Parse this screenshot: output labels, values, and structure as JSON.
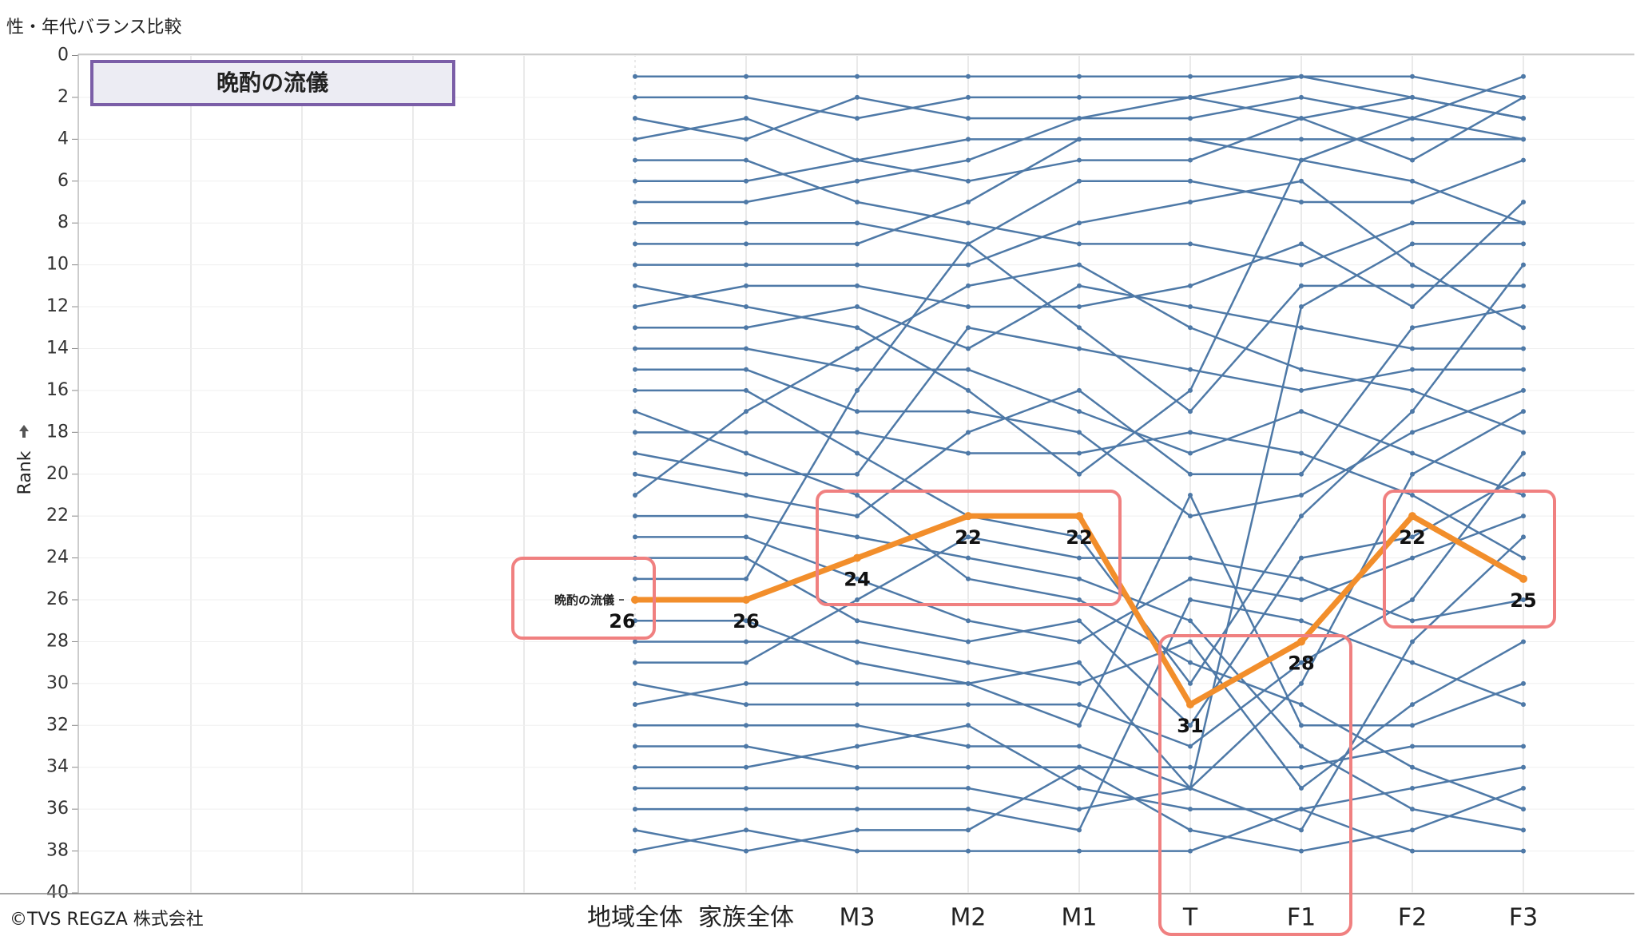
{
  "chart_data": {
    "type": "line",
    "title": "性・年代バランス比較",
    "y_label": "Rank",
    "source": "©TVS REGZA 株式会社",
    "categories": [
      "地域全体",
      "家族全体",
      "M3",
      "M2",
      "M1",
      "T",
      "F1",
      "F2",
      "F3"
    ],
    "ylim": [
      0,
      40
    ],
    "y_reversed": true,
    "grid": true,
    "yticks": [
      0,
      2,
      4,
      6,
      8,
      10,
      12,
      14,
      16,
      18,
      20,
      22,
      24,
      26,
      28,
      30,
      32,
      34,
      36,
      38,
      40
    ],
    "series": [
      {
        "color": "#4e79a7",
        "values": [
          1,
          1,
          1,
          1,
          1,
          1,
          1,
          1,
          2
        ]
      },
      {
        "color": "#4e79a7",
        "values": [
          2,
          2,
          3,
          2,
          2,
          2,
          1,
          2,
          3
        ]
      },
      {
        "color": "#4e79a7",
        "values": [
          3,
          4,
          2,
          3,
          3,
          3,
          2,
          3,
          1
        ]
      },
      {
        "color": "#4e79a7",
        "values": [
          4,
          3,
          5,
          4,
          4,
          4,
          4,
          4,
          4
        ]
      },
      {
        "color": "#4e79a7",
        "values": [
          5,
          5,
          7,
          8,
          9,
          9,
          10,
          8,
          8
        ]
      },
      {
        "color": "#4e79a7",
        "values": [
          6,
          6,
          5,
          6,
          5,
          5,
          3,
          5,
          2
        ]
      },
      {
        "color": "#4e79a7",
        "values": [
          7,
          7,
          6,
          5,
          3,
          2,
          3,
          2,
          3
        ]
      },
      {
        "color": "#4e79a7",
        "values": [
          8,
          8,
          8,
          9,
          6,
          6,
          7,
          7,
          5
        ]
      },
      {
        "color": "#4e79a7",
        "values": [
          9,
          9,
          9,
          7,
          4,
          4,
          5,
          3,
          4
        ]
      },
      {
        "color": "#4e79a7",
        "values": [
          10,
          10,
          10,
          10,
          8,
          7,
          6,
          10,
          13
        ]
      },
      {
        "color": "#4e79a7",
        "values": [
          11,
          12,
          13,
          16,
          20,
          16,
          5,
          6,
          8
        ]
      },
      {
        "color": "#4e79a7",
        "values": [
          12,
          11,
          11,
          12,
          12,
          11,
          9,
          12,
          7
        ]
      },
      {
        "color": "#4e79a7",
        "values": [
          13,
          13,
          12,
          14,
          11,
          12,
          13,
          14,
          14
        ]
      },
      {
        "color": "#4e79a7",
        "values": [
          14,
          14,
          15,
          15,
          17,
          19,
          17,
          19,
          21
        ]
      },
      {
        "color": "#4e79a7",
        "values": [
          15,
          15,
          17,
          17,
          18,
          22,
          21,
          18,
          16
        ]
      },
      {
        "color": "#4e79a7",
        "values": [
          16,
          16,
          19,
          22,
          23,
          30,
          22,
          17,
          10
        ]
      },
      {
        "color": "#4e79a7",
        "values": [
          17,
          19,
          21,
          25,
          26,
          29,
          31,
          34,
          36
        ]
      },
      {
        "color": "#4e79a7",
        "values": [
          18,
          18,
          18,
          19,
          19,
          18,
          19,
          21,
          24
        ]
      },
      {
        "color": "#4e79a7",
        "values": [
          19,
          20,
          20,
          13,
          14,
          15,
          16,
          15,
          15
        ]
      },
      {
        "color": "#4e79a7",
        "values": [
          20,
          21,
          22,
          18,
          16,
          20,
          20,
          13,
          12
        ]
      },
      {
        "color": "#4e79a7",
        "values": [
          21,
          17,
          14,
          11,
          10,
          13,
          15,
          16,
          18
        ]
      },
      {
        "color": "#4e79a7",
        "values": [
          22,
          22,
          23,
          24,
          25,
          27,
          33,
          36,
          37
        ]
      },
      {
        "color": "#4e79a7",
        "values": [
          23,
          23,
          25,
          27,
          28,
          25,
          26,
          24,
          22
        ]
      },
      {
        "color": "#4e79a7",
        "values": [
          24,
          24,
          27,
          28,
          27,
          32,
          24,
          23,
          20
        ]
      },
      {
        "color": "#4e79a7",
        "values": [
          25,
          25,
          16,
          9,
          13,
          17,
          11,
          11,
          11
        ]
      },
      {
        "color": "#4e79a7",
        "values": [
          27,
          27,
          29,
          30,
          29,
          35,
          12,
          9,
          9
        ]
      },
      {
        "color": "#4e79a7",
        "values": [
          28,
          28,
          28,
          29,
          30,
          28,
          35,
          31,
          28
        ]
      },
      {
        "color": "#4e79a7",
        "values": [
          29,
          29,
          26,
          23,
          24,
          24,
          25,
          27,
          26
        ]
      },
      {
        "color": "#4e79a7",
        "values": [
          30,
          31,
          31,
          31,
          31,
          33,
          29,
          26,
          19
        ]
      },
      {
        "color": "#4e79a7",
        "values": [
          31,
          30,
          30,
          30,
          32,
          21,
          32,
          32,
          30
        ]
      },
      {
        "color": "#4e79a7",
        "values": [
          32,
          32,
          32,
          33,
          33,
          35,
          30,
          20,
          17
        ]
      },
      {
        "color": "#4e79a7",
        "values": [
          33,
          33,
          34,
          34,
          34,
          34,
          34,
          33,
          33
        ]
      },
      {
        "color": "#4e79a7",
        "values": [
          34,
          34,
          33,
          32,
          35,
          36,
          36,
          35,
          34
        ]
      },
      {
        "color": "#4e79a7",
        "values": [
          35,
          35,
          35,
          35,
          36,
          35,
          37,
          28,
          23
        ]
      },
      {
        "color": "#4e79a7",
        "values": [
          36,
          36,
          36,
          36,
          37,
          26,
          27,
          29,
          31
        ]
      },
      {
        "color": "#4e79a7",
        "values": [
          37,
          38,
          37,
          37,
          34,
          37,
          38,
          37,
          35
        ]
      },
      {
        "color": "#4e79a7",
        "values": [
          38,
          37,
          38,
          38,
          38,
          38,
          36,
          38,
          38
        ]
      },
      {
        "name": "晩酌の流儀",
        "color": "#f28e2b",
        "highlight": true,
        "show_labels": true,
        "values": [
          26,
          26,
          24,
          22,
          22,
          31,
          28,
          22,
          25
        ]
      }
    ]
  }
}
